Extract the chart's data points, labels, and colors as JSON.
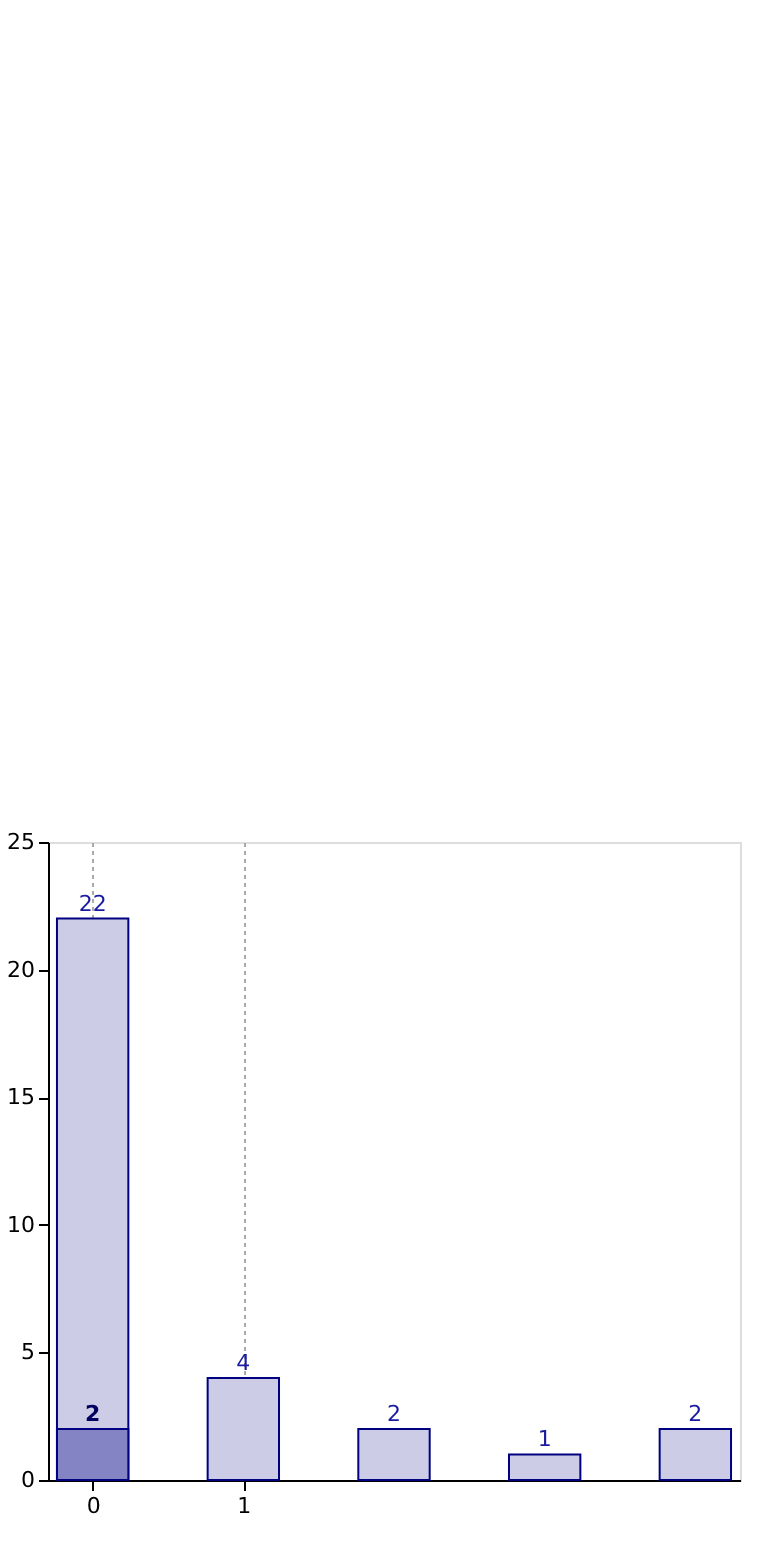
{
  "chart_data": {
    "type": "bar",
    "x": [
      0,
      1,
      2,
      3,
      4
    ],
    "series": [
      {
        "color": "#cccce6",
        "values": [
          22,
          4,
          2,
          1,
          2
        ]
      },
      {
        "color": "#8484c4",
        "values": [
          2,
          null,
          null,
          null,
          null
        ]
      }
    ],
    "xlim": [
      -0.23,
      4.23
    ],
    "xticks": [
      0,
      1
    ],
    "ylim": [
      0,
      25
    ],
    "yticks": [
      0,
      5,
      10,
      15,
      20,
      25
    ],
    "grid": "x",
    "data_labels": true
  }
}
